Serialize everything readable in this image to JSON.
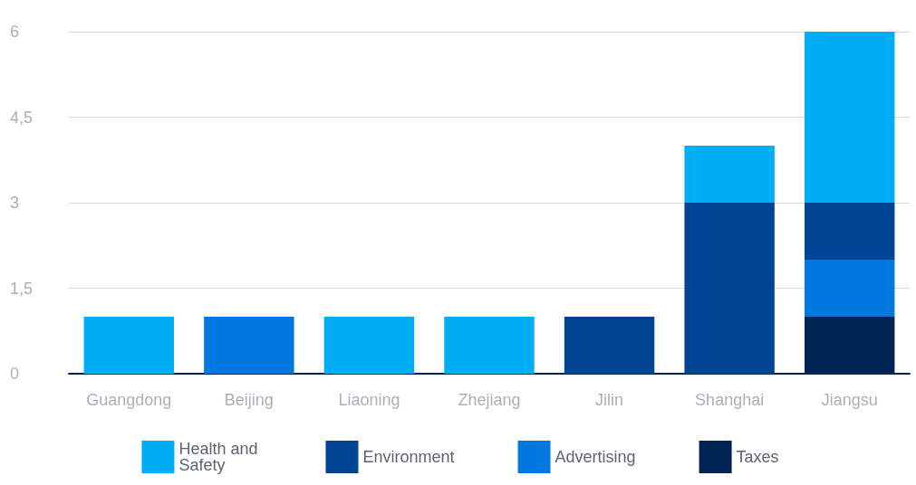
{
  "chart_data": {
    "type": "bar",
    "stacked": true,
    "categories": [
      "Guangdong",
      "Beijing",
      "Liaoning",
      "Zhejiang",
      "Jilin",
      "Shanghai",
      "Jiangsu"
    ],
    "series": [
      {
        "name": "Taxes",
        "color": "#002454",
        "values": [
          0,
          0,
          0,
          0,
          0,
          0,
          1
        ]
      },
      {
        "name": "Advertising",
        "color": "#0078e0",
        "values": [
          0,
          1,
          0,
          0,
          0,
          0,
          1
        ]
      },
      {
        "name": "Environment",
        "color": "#004494",
        "values": [
          0,
          0,
          0,
          0,
          1,
          3,
          1
        ]
      },
      {
        "name": "Health and Safety",
        "color": "#00aef5",
        "values": [
          1,
          0,
          1,
          1,
          0,
          1,
          3
        ]
      }
    ],
    "ylim": [
      0,
      6
    ],
    "yticks": [
      0,
      {
        "value": 1.5,
        "label": "1,5"
      },
      3,
      {
        "value": 4.5,
        "label": "4,5"
      },
      6
    ],
    "grid": "y",
    "legend": "bottom"
  }
}
